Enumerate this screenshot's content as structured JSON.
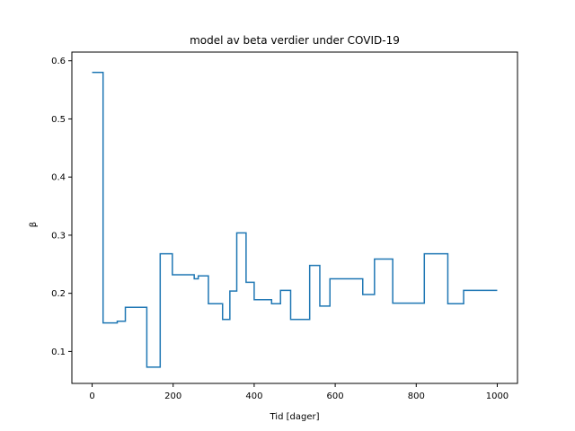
{
  "chart_data": {
    "type": "line",
    "title": "model av beta verdier under COVID-19",
    "xlabel": "Tid [dager]",
    "ylabel": "β",
    "xlim": [
      -50,
      1050
    ],
    "ylim": [
      0.045,
      0.615
    ],
    "xticks": [
      0,
      200,
      400,
      600,
      800,
      1000
    ],
    "yticks": [
      0.1,
      0.2,
      0.3,
      0.4,
      0.5,
      0.6
    ],
    "xtick_labels": [
      "0",
      "200",
      "400",
      "600",
      "800",
      "1000"
    ],
    "ytick_labels": [
      "0.1",
      "0.2",
      "0.3",
      "0.4",
      "0.5",
      "0.6"
    ],
    "grid": false,
    "legend": "none",
    "line_style": "step",
    "series": [
      {
        "color": "#1f77b4",
        "x": [
          0,
          27,
          27,
          62,
          62,
          82,
          82,
          135,
          135,
          168,
          168,
          198,
          198,
          252,
          252,
          262,
          262,
          287,
          287,
          322,
          322,
          340,
          340,
          357,
          357,
          380,
          380,
          400,
          400,
          443,
          443,
          465,
          465,
          490,
          490,
          537,
          537,
          562,
          562,
          587,
          587,
          668,
          668,
          697,
          697,
          742,
          742,
          820,
          820,
          878,
          878,
          917,
          917,
          1000
        ],
        "y": [
          0.58,
          0.58,
          0.149,
          0.149,
          0.152,
          0.152,
          0.176,
          0.176,
          0.073,
          0.073,
          0.268,
          0.268,
          0.232,
          0.232,
          0.225,
          0.225,
          0.23,
          0.23,
          0.182,
          0.182,
          0.155,
          0.155,
          0.204,
          0.204,
          0.304,
          0.304,
          0.219,
          0.219,
          0.189,
          0.189,
          0.182,
          0.182,
          0.205,
          0.205,
          0.155,
          0.155,
          0.248,
          0.248,
          0.178,
          0.178,
          0.225,
          0.225,
          0.198,
          0.198,
          0.259,
          0.259,
          0.183,
          0.183,
          0.268,
          0.268,
          0.182,
          0.182,
          0.205,
          0.205
        ]
      }
    ]
  }
}
